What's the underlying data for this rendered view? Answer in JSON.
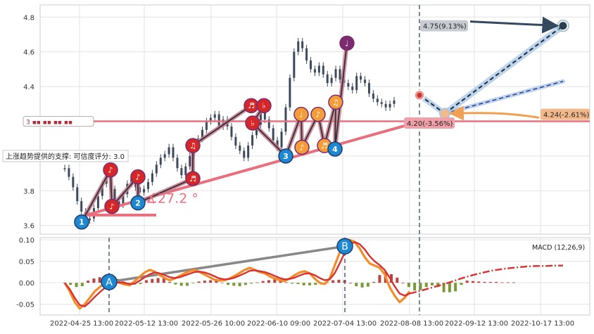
{
  "chart_data": [
    {
      "type": "candlestick",
      "title": "",
      "ylim": [
        3.55,
        4.87
      ],
      "yticks": [
        3.6,
        3.8,
        4.0,
        4.2,
        4.4,
        4.6,
        4.8
      ],
      "ytick_labels": [
        "3.6",
        "3.8",
        "",
        "",
        "4.4",
        "4.6",
        "4.8"
      ],
      "grid": true,
      "price_series": [
        3.93,
        3.88,
        3.82,
        3.74,
        3.68,
        3.63,
        3.64,
        3.7,
        3.77,
        3.84,
        3.88,
        3.81,
        3.74,
        3.72,
        3.78,
        3.84,
        3.87,
        3.82,
        3.79,
        3.81,
        3.85,
        3.9,
        3.95,
        3.99,
        4.01,
        4.05,
        3.99,
        3.93,
        3.89,
        3.94,
        4.0,
        4.05,
        4.1,
        4.15,
        4.2,
        4.22,
        4.24,
        4.17,
        4.21,
        4.17,
        4.11,
        4.06,
        4.03,
        3.99,
        4.06,
        4.12,
        4.18,
        4.25,
        4.21,
        4.16,
        4.09,
        4.05,
        4.14,
        4.28,
        4.45,
        4.6,
        4.66,
        4.62,
        4.55,
        4.5,
        4.48,
        4.52,
        4.47,
        4.42,
        4.45,
        4.5,
        4.44,
        4.42,
        4.4,
        4.38,
        4.46,
        4.44,
        4.42,
        4.36,
        4.33,
        4.31,
        4.3,
        4.28,
        4.3,
        4.32
      ],
      "wave_points": [
        {
          "label": "1",
          "kind": "number",
          "color": "#1e88d2",
          "value": 3.62
        },
        {
          "label": "♪",
          "kind": "note",
          "color": "#d62728",
          "value": 3.71
        },
        {
          "label": "♪",
          "kind": "note",
          "color": "#d62728",
          "value": 3.92
        },
        {
          "label": "2",
          "kind": "number",
          "color": "#1e88d2",
          "value": 3.73
        },
        {
          "label": "♪",
          "kind": "note",
          "color": "#d62728",
          "value": 3.88
        },
        {
          "label": "♬",
          "kind": "note",
          "color": "#d62728",
          "value": 3.87
        },
        {
          "label": "♫",
          "kind": "note",
          "color": "#d62728",
          "value": 4.06
        },
        {
          "label": "♬",
          "kind": "note",
          "color": "#d62728",
          "value": 4.29
        },
        {
          "label": "♭",
          "kind": "note",
          "color": "#d62728",
          "value": 4.29
        },
        {
          "label": "♭",
          "kind": "note",
          "color": "#d62728",
          "value": 4.19
        },
        {
          "label": "3",
          "kind": "number",
          "color": "#1e88d2",
          "value": 4.0
        },
        {
          "label": "♩",
          "kind": "note",
          "color": "#f39c38",
          "value": 4.24
        },
        {
          "label": "♪",
          "kind": "note",
          "color": "#f39c38",
          "value": 4.05
        },
        {
          "label": "♪",
          "kind": "note",
          "color": "#f39c38",
          "value": 4.24
        },
        {
          "label": "♬",
          "kind": "note",
          "color": "#f39c38",
          "value": 4.06
        },
        {
          "label": "♫",
          "kind": "note",
          "color": "#f39c38",
          "value": 4.31
        },
        {
          "label": "4",
          "kind": "number",
          "color": "#1e88d2",
          "value": 4.04
        },
        {
          "label": "♩",
          "kind": "note",
          "color": "#7b2b6e",
          "value": 4.65
        }
      ],
      "support_line_value": 4.2,
      "support_label": "上涨趋势提供的支撑: 可信度评分: 3.0",
      "support_badge": "3 ▪▪ ▪▪ ▪▪ ▪▪",
      "angle_label": "∡27.2 °",
      "projection_labels": [
        {
          "text": "4.75(9.13%)",
          "value": 4.75
        },
        {
          "text": "4.24(-2.61%)",
          "value": 4.24
        },
        {
          "text": "4.20(-3.56%)",
          "value": 4.2
        }
      ],
      "current_price": 4.35,
      "target_value": 4.75
    },
    {
      "type": "line",
      "title": "MACD (12,26,9)",
      "ylim": [
        -0.075,
        0.105
      ],
      "yticks": [
        -0.05,
        0.0,
        0.05,
        0.1
      ],
      "ytick_labels": [
        "-0.05",
        "0.00",
        "0.05",
        "0.10"
      ],
      "x_tick_labels": [
        "2022-04-25 13:00",
        "2022-05-12 13:00",
        "2022-05-26 10:00",
        "2022-06-10 09:00",
        "2022-07-04 13:00",
        "2022-08-08 13:00",
        "2022-09-12 13:00",
        "2022-10-17 13:00"
      ],
      "markers": [
        {
          "label": "A",
          "value": 0.002
        },
        {
          "label": "B",
          "value": 0.085
        }
      ],
      "series": [
        {
          "color": "#f28c28",
          "values": [
            0.0,
            -0.02,
            -0.045,
            -0.06,
            -0.05,
            -0.035,
            -0.02,
            -0.01,
            0.0,
            0.005,
            0.003,
            0.0,
            -0.004,
            -0.006,
            0.004,
            0.014,
            0.024,
            0.03,
            0.026,
            0.018,
            0.011,
            0.006,
            0.01,
            0.016,
            0.022,
            0.027,
            0.03,
            0.025,
            0.019,
            0.013,
            0.007,
            0.005,
            0.006,
            0.01,
            0.016,
            0.023,
            0.03,
            0.035,
            0.03,
            0.025,
            0.022,
            0.015,
            0.01,
            0.006,
            0.004,
            0.01,
            0.018,
            0.024,
            0.027,
            0.022,
            0.01,
            0.0,
            -0.003,
            0.01,
            0.04,
            0.07,
            0.09,
            0.1,
            0.095,
            0.08,
            0.06,
            0.045,
            0.04,
            0.035,
            0.02,
            -0.01,
            -0.03,
            -0.045,
            -0.035,
            -0.02
          ]
        },
        {
          "color": "#d93030",
          "values": [
            0.0,
            -0.015,
            -0.035,
            -0.052,
            -0.055,
            -0.045,
            -0.033,
            -0.022,
            -0.012,
            -0.004,
            0.0,
            0.001,
            0.0,
            -0.003,
            -0.002,
            0.005,
            0.013,
            0.02,
            0.024,
            0.022,
            0.018,
            0.013,
            0.011,
            0.013,
            0.017,
            0.021,
            0.025,
            0.026,
            0.024,
            0.02,
            0.015,
            0.01,
            0.008,
            0.009,
            0.012,
            0.017,
            0.022,
            0.028,
            0.029,
            0.027,
            0.025,
            0.021,
            0.016,
            0.011,
            0.008,
            0.009,
            0.012,
            0.017,
            0.021,
            0.022,
            0.018,
            0.011,
            0.006,
            0.008,
            0.022,
            0.045,
            0.07,
            0.088,
            0.095,
            0.09,
            0.078,
            0.062,
            0.05,
            0.041,
            0.03,
            0.012,
            -0.008,
            -0.025,
            -0.03,
            -0.025
          ]
        },
        {
          "color": "#d93030",
          "dashed": true,
          "values": [
            -0.025,
            -0.02,
            -0.014,
            -0.008,
            -0.002,
            0.005,
            0.012,
            0.018,
            0.023,
            0.028,
            0.031,
            0.034,
            0.036,
            0.038,
            0.039,
            0.039,
            0.04,
            0.04
          ]
        }
      ],
      "histogram": [
        0.0,
        -0.005,
        -0.01,
        -0.008,
        0.005,
        0.01,
        0.013,
        0.012,
        0.012,
        0.009,
        0.003,
        -0.001,
        -0.004,
        -0.003,
        0.006,
        0.009,
        0.011,
        0.01,
        0.002,
        -0.004,
        -0.007,
        -0.007,
        -0.001,
        0.003,
        0.005,
        0.006,
        0.005,
        -0.001,
        -0.005,
        -0.007,
        -0.008,
        -0.005,
        -0.002,
        0.001,
        0.004,
        0.006,
        0.008,
        0.007,
        0.001,
        -0.002,
        -0.003,
        -0.006,
        -0.006,
        -0.005,
        -0.004,
        0.001,
        0.006,
        0.007,
        0.006,
        0.0,
        -0.008,
        -0.011,
        -0.009,
        0.002,
        0.018,
        0.025,
        0.02,
        0.012,
        0.0,
        -0.01,
        -0.018,
        -0.017,
        -0.01,
        -0.006,
        -0.01,
        -0.022,
        -0.022,
        -0.02,
        -0.005,
        0.005,
        0.004,
        0.003,
        0.002,
        0.002,
        0.002,
        0.001,
        0.001,
        0.001
      ]
    }
  ]
}
